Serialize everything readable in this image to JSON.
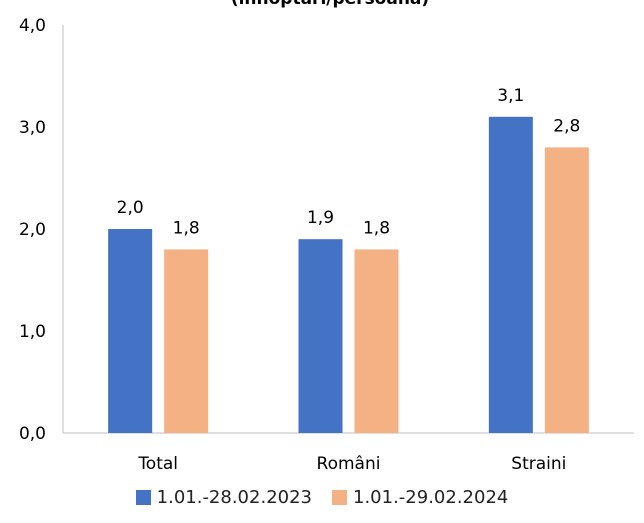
{
  "chart_data": {
    "type": "bar",
    "title": "(înnoptări/persoană)",
    "categories": [
      "Total",
      "Români",
      "Straini"
    ],
    "series": [
      {
        "name": "1.01.-28.02.2023",
        "color": "#4472C4",
        "values": [
          2.0,
          1.9,
          3.1
        ],
        "labels": [
          "2,0",
          "1,9",
          "3,1"
        ]
      },
      {
        "name": "1.01.-29.02.2024",
        "color": "#F4B183",
        "values": [
          1.8,
          1.8,
          2.8
        ],
        "labels": [
          "1,8",
          "1,8",
          "2,8"
        ]
      }
    ],
    "ylim": [
      0,
      4
    ],
    "yticks": [
      "0,0",
      "1,0",
      "2,0",
      "3,0",
      "4,0"
    ],
    "legend_position": "bottom",
    "grid": false
  }
}
